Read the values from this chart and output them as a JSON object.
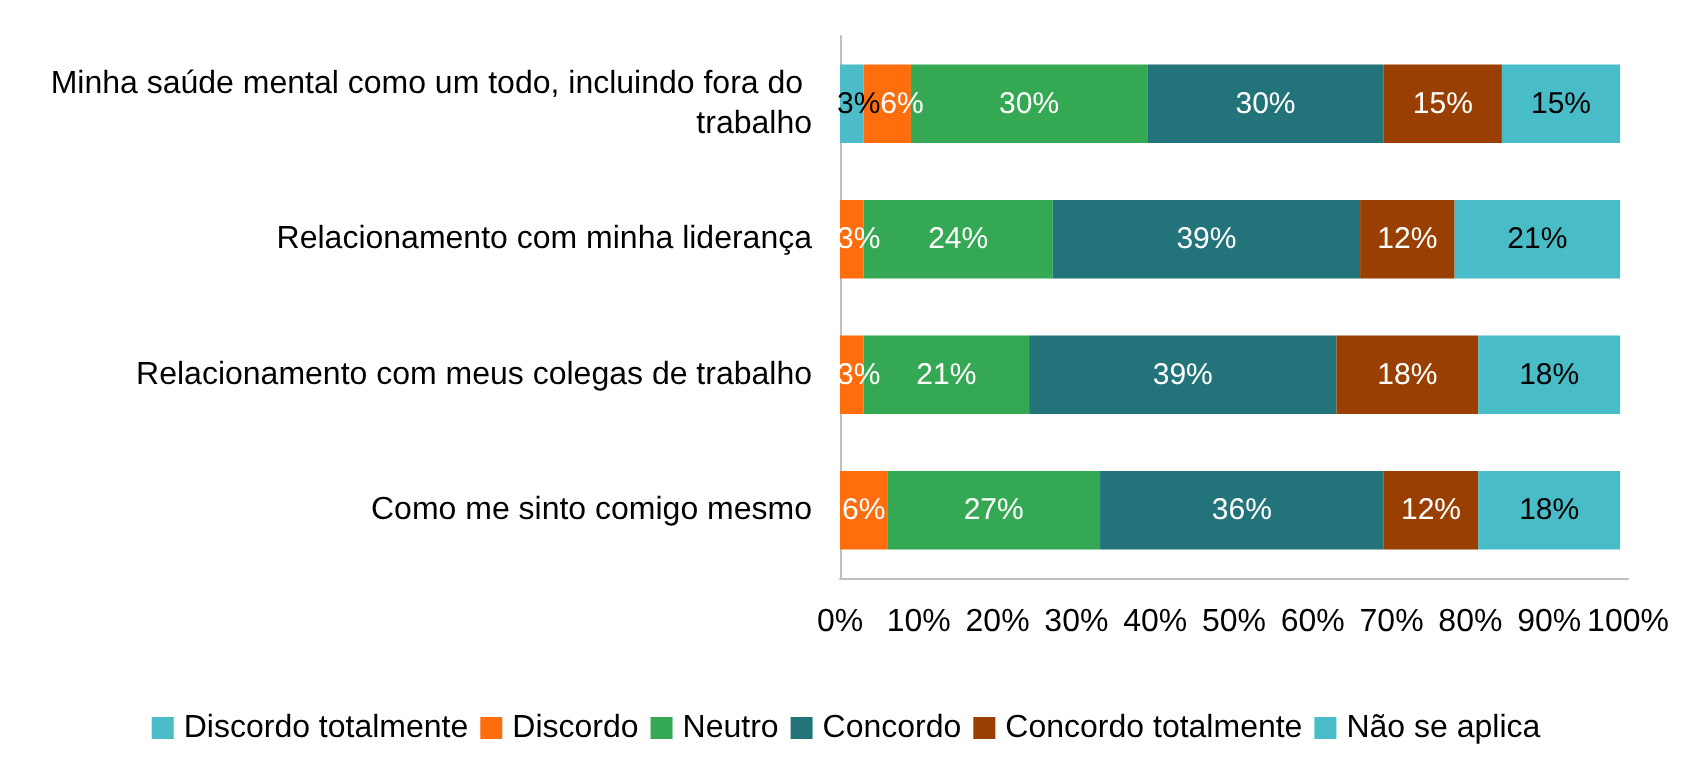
{
  "chart_data": {
    "type": "bar",
    "orientation": "horizontal",
    "stacked": true,
    "categories": [
      "Minha saúde mental como um todo, incluindo fora do trabalho",
      "Relacionamento com minha liderança",
      "Relacionamento com meus colegas de trabalho",
      "Como me sinto comigo mesmo"
    ],
    "series": [
      {
        "name": "Discordo totalmente",
        "color": "#4bbcc8",
        "values": [
          3,
          null,
          null,
          null
        ],
        "value_labels": [
          "3%",
          null,
          null,
          null
        ]
      },
      {
        "name": "Discordo",
        "color": "#ff6d0d",
        "values": [
          6,
          3,
          3,
          6
        ],
        "value_labels": [
          "6%",
          "3%",
          "3%",
          "6%"
        ]
      },
      {
        "name": "Neutro",
        "color": "#34a853",
        "values": [
          30,
          24,
          21,
          27
        ],
        "value_labels": [
          "30%",
          "24%",
          "21%",
          "27%"
        ]
      },
      {
        "name": "Concordo",
        "color": "#23737a",
        "values": [
          30,
          39,
          39,
          36
        ],
        "value_labels": [
          "30%",
          "39%",
          "39%",
          "36%"
        ]
      },
      {
        "name": "Concordo totalmente",
        "color": "#9a3f02",
        "values": [
          15,
          12,
          18,
          12
        ],
        "value_labels": [
          "15%",
          "12%",
          "18%",
          "12%"
        ]
      },
      {
        "name": "Não se aplica",
        "color": "#48bdc8",
        "values": [
          15,
          21,
          18,
          18
        ],
        "value_labels": [
          "15%",
          "21%",
          "18%",
          "18%"
        ]
      }
    ],
    "xlim": [
      0,
      100
    ],
    "xticks": [
      {
        "value": 0,
        "label": "0%"
      },
      {
        "value": 10,
        "label": "10%"
      },
      {
        "value": 20,
        "label": "20%"
      },
      {
        "value": 30,
        "label": "30%"
      },
      {
        "value": 40,
        "label": "40%"
      },
      {
        "value": 50,
        "label": "50%"
      },
      {
        "value": 60,
        "label": "60%"
      },
      {
        "value": 70,
        "label": "70%"
      },
      {
        "value": 80,
        "label": "80%"
      },
      {
        "value": 90,
        "label": "90%"
      },
      {
        "value": 100,
        "label": "100%"
      }
    ],
    "grid": false,
    "legend": "bottom"
  }
}
